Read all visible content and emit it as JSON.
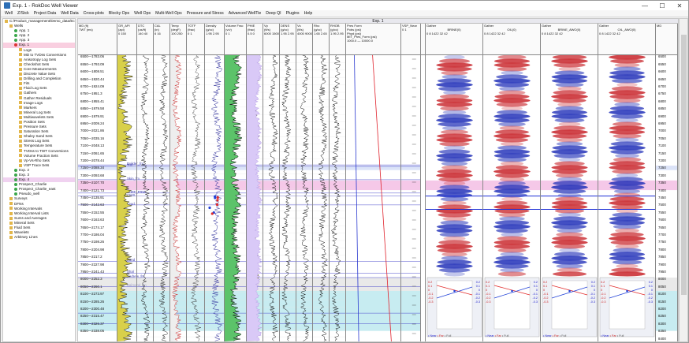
{
  "window": {
    "title": "Exp. 1 - RokDoc Well Viewer",
    "minimize": "—",
    "maximize": "☐",
    "close": "✕"
  },
  "menu": [
    "Well",
    "Z/Stck",
    "Project Data",
    "Well Data",
    "Cross-plots",
    "Blocky Ops",
    "Well Ops",
    "Multi-Well Ops",
    "Pressure and Stress",
    "Advanced WellTie",
    "Deep QI",
    "Plugins",
    "Help"
  ],
  "tree": [
    {
      "label": "C:/Product_management/Demo_data/Eco_gRip",
      "indent": 0,
      "icon": "folder-icon",
      "color": "#e2b64a"
    },
    {
      "label": "Wells",
      "indent": 1,
      "icon": "folder-icon",
      "color": "#e2b64a"
    },
    {
      "label": "App. 1",
      "indent": 2,
      "icon": "well-icon",
      "color": "#3aa64a"
    },
    {
      "label": "App. 2",
      "indent": 2,
      "icon": "well-icon",
      "color": "#3aa64a"
    },
    {
      "label": "App. 3",
      "indent": 2,
      "icon": "well-icon",
      "color": "#3aa64a"
    },
    {
      "label": "Exp. 1",
      "indent": 2,
      "icon": "well-icon",
      "color": "#d33",
      "sel": "sel"
    },
    {
      "label": "Logs",
      "indent": 3,
      "icon": "folder-icon",
      "color": "#e2b64a"
    },
    {
      "label": "MD to TVDss Conversions",
      "indent": 3,
      "icon": "folder-icon",
      "color": "#e2b64a"
    },
    {
      "label": "Anisotropy Log Sets",
      "indent": 3,
      "icon": "folder-icon",
      "color": "#e2b64a"
    },
    {
      "label": "Checkshot Sets",
      "indent": 3,
      "icon": "folder-icon",
      "color": "#e2b64a"
    },
    {
      "label": "Core Measurements",
      "indent": 3,
      "icon": "folder-icon",
      "color": "#e2b64a"
    },
    {
      "label": "Discrete Value Sets",
      "indent": 3,
      "icon": "folder-icon",
      "color": "#e2b64a"
    },
    {
      "label": "Drilling and Completion",
      "indent": 3,
      "icon": "folder-icon",
      "color": "#e2b64a"
    },
    {
      "label": "Fits",
      "indent": 3,
      "icon": "folder-icon",
      "color": "#e2b64a"
    },
    {
      "label": "Fluid Log Sets",
      "indent": 3,
      "icon": "folder-icon",
      "color": "#e2b64a"
    },
    {
      "label": "Gathers",
      "indent": 3,
      "icon": "folder-icon",
      "color": "#e2b64a"
    },
    {
      "label": "Gather Residuals",
      "indent": 3,
      "icon": "folder-icon",
      "color": "#e2b64a"
    },
    {
      "label": "Image Logs",
      "indent": 3,
      "icon": "folder-icon",
      "color": "#e2b64a"
    },
    {
      "label": "Markers",
      "indent": 3,
      "icon": "folder-icon",
      "color": "#e2b64a"
    },
    {
      "label": "Mineral Log Sets",
      "indent": 3,
      "icon": "folder-icon",
      "color": "#e2b64a"
    },
    {
      "label": "Multiwavelets Sets",
      "indent": 3,
      "icon": "folder-icon",
      "color": "#e2b64a"
    },
    {
      "label": "Position Sets",
      "indent": 3,
      "icon": "folder-icon",
      "color": "#e2b64a"
    },
    {
      "label": "Pressure Sets",
      "indent": 3,
      "icon": "folder-icon",
      "color": "#e2b64a"
    },
    {
      "label": "Saturation Sets",
      "indent": 3,
      "icon": "folder-icon",
      "color": "#e2b64a"
    },
    {
      "label": "Shaley Sand Sets",
      "indent": 3,
      "icon": "folder-icon",
      "color": "#e2b64a"
    },
    {
      "label": "Stress Log Sets",
      "indent": 3,
      "icon": "folder-icon",
      "color": "#e2b64a"
    },
    {
      "label": "Temperature Sets",
      "indent": 3,
      "icon": "folder-icon",
      "color": "#e2b64a"
    },
    {
      "label": "TVDss to TWT Conversions",
      "indent": 3,
      "icon": "folder-icon",
      "color": "#e2b64a"
    },
    {
      "label": "Volume Fraction Sets",
      "indent": 3,
      "icon": "folder-icon",
      "color": "#e2b64a"
    },
    {
      "label": "Vp-Vs-Rho Sets",
      "indent": 3,
      "icon": "folder-icon",
      "color": "#e2b64a"
    },
    {
      "label": "VSP Trace Sets",
      "indent": 3,
      "icon": "folder-icon",
      "color": "#e2b64a"
    },
    {
      "label": "Exp. 2",
      "indent": 2,
      "icon": "well-icon",
      "color": "#3aa64a"
    },
    {
      "label": "Exp. 3",
      "indent": 2,
      "icon": "well-icon",
      "color": "#3aa64a"
    },
    {
      "label": "Exp. 4",
      "indent": 2,
      "icon": "well-icon",
      "color": "#3aa64a",
      "sel": "sel2"
    },
    {
      "label": "Prospect_Charlie",
      "indent": 2,
      "icon": "well-icon",
      "color": "#3aa64a"
    },
    {
      "label": "Prospect_Charlie_east",
      "indent": 2,
      "icon": "well-icon",
      "color": "#3aa64a"
    },
    {
      "label": "Pseudo_well",
      "indent": 2,
      "icon": "well-icon",
      "color": "#3aa64a"
    },
    {
      "label": "Surveys",
      "indent": 1,
      "icon": "folder-icon",
      "color": "#e2b64a"
    },
    {
      "label": "DFNs",
      "indent": 1,
      "icon": "folder-icon",
      "color": "#e2b64a"
    },
    {
      "label": "Working Intervals",
      "indent": 1,
      "icon": "folder-icon",
      "color": "#e2b64a"
    },
    {
      "label": "Working Interval Lists",
      "indent": 1,
      "icon": "folder-icon",
      "color": "#e2b64a"
    },
    {
      "label": "Sums and Averages",
      "indent": 1,
      "icon": "folder-icon",
      "color": "#e2b64a"
    },
    {
      "label": "Mineral Sets",
      "indent": 1,
      "icon": "folder-icon",
      "color": "#e2b64a"
    },
    {
      "label": "Fluid Sets",
      "indent": 1,
      "icon": "folder-icon",
      "color": "#e2b64a"
    },
    {
      "label": "Wavelets",
      "indent": 1,
      "icon": "folder-icon",
      "color": "#e2b64a"
    },
    {
      "label": "Arbitrary Lines",
      "indent": 1,
      "icon": "folder-icon",
      "color": "#e2b64a"
    }
  ],
  "well_header": "Exp. 1",
  "md_track": {
    "header": "MD (ft)",
    "twt_header": "TWT (ms)",
    "labels": [
      [
        "6500",
        "1783.06"
      ],
      [
        "6550",
        "1793.09"
      ],
      [
        "6600",
        "1808.51"
      ],
      [
        "6650",
        "1920.44"
      ],
      [
        "6700",
        "1924.09"
      ],
      [
        "6750",
        "1951.3"
      ],
      [
        "6800",
        "1955.41"
      ],
      [
        "6850",
        "1979.58"
      ],
      [
        "6900",
        "1979.91"
      ],
      [
        "6950",
        "2009.24"
      ],
      [
        "7000",
        "2021.86"
      ],
      [
        "7050",
        "2035.16"
      ],
      [
        "7100",
        "2048.13"
      ],
      [
        "7150",
        "2061.65"
      ],
      [
        "7200",
        "2078.44"
      ],
      [
        "7250",
        "2088.34"
      ],
      [
        "7300",
        "2093.68"
      ],
      [
        "7350",
        "2107.70"
      ],
      [
        "7400",
        "2121.73"
      ],
      [
        "7450",
        "2135.91"
      ],
      [
        "7500",
        "2142.63"
      ],
      [
        "7550",
        "2152.55"
      ],
      [
        "7600",
        "2163.63"
      ],
      [
        "7650",
        "2174.17"
      ],
      [
        "7700",
        "2186.04"
      ],
      [
        "7750",
        "2198.26"
      ],
      [
        "7800",
        "2204.98"
      ],
      [
        "7850",
        "2217.2"
      ],
      [
        "7900",
        "2227.98"
      ],
      [
        "7950",
        "2241.43"
      ],
      [
        "8000",
        "2252.3"
      ],
      [
        "8050",
        "2260.1"
      ],
      [
        "8100",
        "2273.97"
      ],
      [
        "8150",
        "2285.26"
      ],
      [
        "8200",
        "2300.48"
      ],
      [
        "8250",
        "2315.47"
      ],
      [
        "8300",
        "2326.37"
      ],
      [
        "8350",
        "2338.05"
      ]
    ]
  },
  "markers": [
    {
      "name": "Builder_fm",
      "md": "7230"
    },
    {
      "name": "Tuff",
      "md": "7240"
    },
    {
      "name": "Skin_fm",
      "md": "7330"
    },
    {
      "name": "TUFF_FRM",
      "md": "7420"
    },
    {
      "name": "CNSL",
      "md": "7440"
    },
    {
      "name": "Lead",
      "md": "7500"
    },
    {
      "name": "Sand",
      "md": "7880"
    },
    {
      "name": "Shal",
      "md": "7960"
    },
    {
      "name": "Andrew_fm",
      "md": "7990"
    },
    {
      "name": "Balmoral_fm",
      "md": "8050"
    },
    {
      "name": "Forties_fm",
      "md": "8230"
    },
    {
      "name": "Sele_fm",
      "md": "8300"
    }
  ],
  "log_tracks": [
    {
      "name": "GR_API",
      "unit": "(api)",
      "scale": "0   150"
    },
    {
      "name": "DTC",
      "unit": "(us/ft)",
      "scale": "140  40"
    },
    {
      "name": "CAL",
      "unit": "(in)",
      "scale": "6   16"
    },
    {
      "name": "Temp",
      "unit": "(degF)",
      "scale": "100 250"
    },
    {
      "name": "TOTF",
      "unit": "(frac)",
      "scale": "0    1"
    },
    {
      "name": "Density",
      "unit": "(g/cc)",
      "scale": "1.95 2.95"
    },
    {
      "name": "Volume Frac",
      "unit": "(v/v)",
      "scale": "0    1"
    },
    {
      "name": "PHIE",
      "unit": "(frac)",
      "scale": "0.5   0"
    },
    {
      "name": "Vp",
      "unit": "(ft/s)",
      "scale": "6000 15000"
    },
    {
      "name": "DENS",
      "unit": "(g/cc)",
      "scale": "1.95 2.95"
    },
    {
      "name": "Vs",
      "unit": "(ft/s)",
      "scale": "4000 9000"
    },
    {
      "name": "Rho",
      "unit": "(g/cc)",
      "scale": "1.65 2.65"
    },
    {
      "name": "RHOB",
      "unit": "(g/cc)",
      "scale": "1.95 2.95"
    }
  ],
  "pressure_track": {
    "name": "Pres Form",
    "items": [
      "Pobs (psi)",
      "Phyd (psi)",
      "MIT_Pres_Form (psi)"
    ],
    "scale_min": "1000.0",
    "scale_max": "10000.0"
  },
  "extra_track": {
    "name": "VSP_Near",
    "scale": "0    1"
  },
  "gathers": [
    {
      "name": "Gather",
      "label": "BRINE(0)",
      "ticks": "0 8 1422 32 42"
    },
    {
      "name": "Gather",
      "label": "OIL(0)",
      "ticks": "0 8 1422 32 42"
    },
    {
      "name": "Gather",
      "label": "BRINE_AWO(0)",
      "ticks": "0 8 1422 32 42"
    },
    {
      "name": "Gather",
      "label": "OIL_AWO(0)",
      "ticks": "0 8 1422 32 42"
    }
  ],
  "avo_plot": {
    "yticks": [
      "0.2",
      "0.1",
      "0",
      "-0.1",
      "-0.2",
      "-0.3"
    ],
    "legend": [
      "Near",
      "Far",
      "Full"
    ]
  },
  "right_md": {
    "header": "MD",
    "labels": [
      "6500",
      "6550",
      "6600",
      "6650",
      "6700",
      "6750",
      "6800",
      "6850",
      "6900",
      "6950",
      "7000",
      "7050",
      "7100",
      "7150",
      "7200",
      "7250",
      "7300",
      "7350",
      "7400",
      "7450",
      "7500",
      "7550",
      "7600",
      "7650",
      "7700",
      "7750",
      "7800",
      "7850",
      "7900",
      "7950",
      "8000",
      "8050",
      "8100",
      "8150",
      "8200",
      "8250",
      "8300",
      "8350",
      "8400",
      "8450",
      "8500",
      "8550",
      "8600"
    ]
  },
  "colors": {
    "gr_fill": "#d8d04a",
    "vol_green": "#5cc36a",
    "pink_zone": "#f5c8e8",
    "cyan_zone": "#c7ecf1",
    "blue_band": "#b8c7f2",
    "seis_red": "#c8242a",
    "seis_blue": "#2130b8"
  }
}
